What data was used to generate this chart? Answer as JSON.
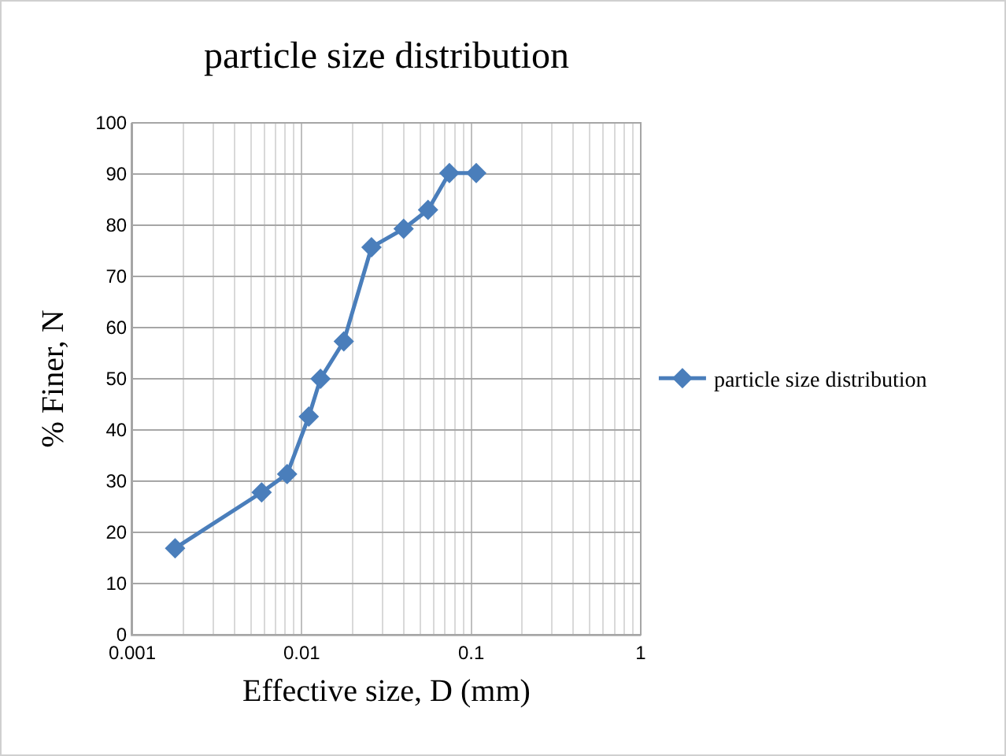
{
  "chart_data": {
    "type": "line",
    "title": "particle size distribution",
    "xlabel": "Effective size, D (mm)",
    "ylabel": "% Finer, N",
    "x": [
      0.00179,
      0.0058,
      0.0082,
      0.011,
      0.0129,
      0.0177,
      0.0258,
      0.0399,
      0.0556,
      0.0743,
      0.107
    ],
    "series": [
      {
        "name": "particle size distribution",
        "color": "#4a7ebb",
        "values": [
          16.9,
          27.8,
          31.4,
          42.6,
          50.0,
          57.3,
          75.7,
          79.3,
          83.0,
          90.2,
          90.2
        ]
      }
    ],
    "log": "x",
    "xlim": [
      0.001,
      1
    ],
    "xticks": [
      0.001,
      0.01,
      0.1,
      1
    ],
    "ylim": [
      0,
      100
    ],
    "yticks": [
      0,
      10,
      20,
      30,
      40,
      50,
      60,
      70,
      80,
      90,
      100
    ],
    "grid": true,
    "legend": "right",
    "marker": "diamond",
    "line_style": "solid"
  }
}
